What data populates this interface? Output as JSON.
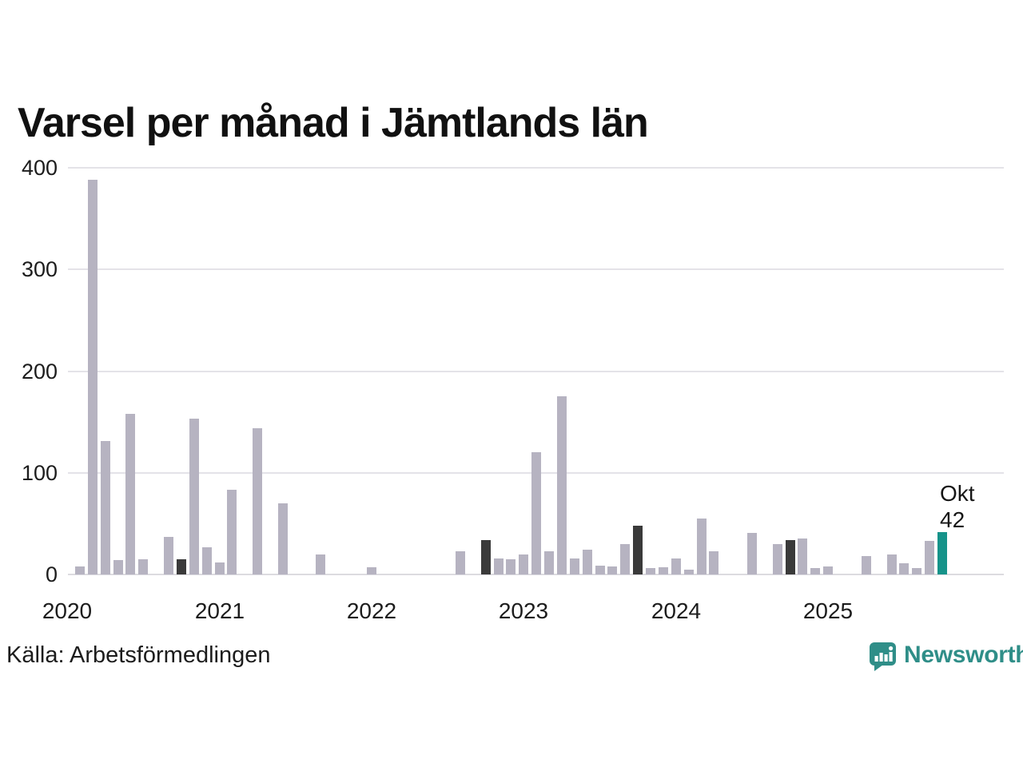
{
  "title": "Varsel per månad i Jämtlands län",
  "source": "Källa: Arbetsförmedlingen",
  "logo": {
    "text": "Newsworthy"
  },
  "annotation": {
    "month_label": "Okt",
    "value_label": "42"
  },
  "colors": {
    "bar": "#b6b3c1",
    "highlight_dark": "#3a3a3a",
    "highlight_current": "#16938a",
    "grid": "#e4e3e8",
    "axis_text": "#1c1c1c",
    "logo_teal": "#2f8e88",
    "background": "#ffffff"
  },
  "chart_data": {
    "type": "bar",
    "title": "Varsel per månad i Jämtlands län",
    "xlabel": "",
    "ylabel": "",
    "ylim": [
      0,
      400
    ],
    "yticks": [
      0,
      100,
      200,
      300,
      400
    ],
    "grid": "horizontal",
    "legend": "none",
    "xticks": [
      {
        "label": "2020",
        "month": "2020-01"
      },
      {
        "label": "2021",
        "month": "2021-01"
      },
      {
        "label": "2022",
        "month": "2022-01"
      },
      {
        "label": "2023",
        "month": "2023-01"
      },
      {
        "label": "2024",
        "month": "2024-01"
      },
      {
        "label": "2025",
        "month": "2025-01"
      }
    ],
    "highlight_rule": "october-months-dark, latest-month-teal",
    "current": {
      "month": "2025-10",
      "label": "Okt",
      "value": 42
    },
    "points": [
      [
        "2020-01",
        0
      ],
      [
        "2020-02",
        8
      ],
      [
        "2020-03",
        388
      ],
      [
        "2020-04",
        131
      ],
      [
        "2020-05",
        14
      ],
      [
        "2020-06",
        158
      ],
      [
        "2020-07",
        15
      ],
      [
        "2020-08",
        0
      ],
      [
        "2020-09",
        37
      ],
      [
        "2020-10",
        15
      ],
      [
        "2020-11",
        153
      ],
      [
        "2020-12",
        27
      ],
      [
        "2021-01",
        12
      ],
      [
        "2021-02",
        83
      ],
      [
        "2021-03",
        0
      ],
      [
        "2021-04",
        144
      ],
      [
        "2021-05",
        0
      ],
      [
        "2021-06",
        70
      ],
      [
        "2021-07",
        0
      ],
      [
        "2021-08",
        0
      ],
      [
        "2021-09",
        20
      ],
      [
        "2021-10",
        0
      ],
      [
        "2021-11",
        0
      ],
      [
        "2021-12",
        0
      ],
      [
        "2022-01",
        7
      ],
      [
        "2022-02",
        0
      ],
      [
        "2022-03",
        0
      ],
      [
        "2022-04",
        0
      ],
      [
        "2022-05",
        0
      ],
      [
        "2022-06",
        0
      ],
      [
        "2022-07",
        0
      ],
      [
        "2022-08",
        23
      ],
      [
        "2022-09",
        0
      ],
      [
        "2022-10",
        34
      ],
      [
        "2022-11",
        16
      ],
      [
        "2022-12",
        15
      ],
      [
        "2023-01",
        20
      ],
      [
        "2023-02",
        120
      ],
      [
        "2023-03",
        23
      ],
      [
        "2023-04",
        175
      ],
      [
        "2023-05",
        16
      ],
      [
        "2023-06",
        24
      ],
      [
        "2023-07",
        9
      ],
      [
        "2023-08",
        8
      ],
      [
        "2023-09",
        30
      ],
      [
        "2023-10",
        48
      ],
      [
        "2023-11",
        6
      ],
      [
        "2023-12",
        7
      ],
      [
        "2024-01",
        16
      ],
      [
        "2024-02",
        5
      ],
      [
        "2024-03",
        55
      ],
      [
        "2024-04",
        23
      ],
      [
        "2024-05",
        0
      ],
      [
        "2024-06",
        0
      ],
      [
        "2024-07",
        41
      ],
      [
        "2024-08",
        0
      ],
      [
        "2024-09",
        30
      ],
      [
        "2024-10",
        34
      ],
      [
        "2024-11",
        35
      ],
      [
        "2024-12",
        6
      ],
      [
        "2025-01",
        8
      ],
      [
        "2025-02",
        0
      ],
      [
        "2025-03",
        0
      ],
      [
        "2025-04",
        18
      ],
      [
        "2025-05",
        0
      ],
      [
        "2025-06",
        20
      ],
      [
        "2025-07",
        11
      ],
      [
        "2025-08",
        6
      ],
      [
        "2025-09",
        33
      ],
      [
        "2025-10",
        42
      ]
    ]
  }
}
